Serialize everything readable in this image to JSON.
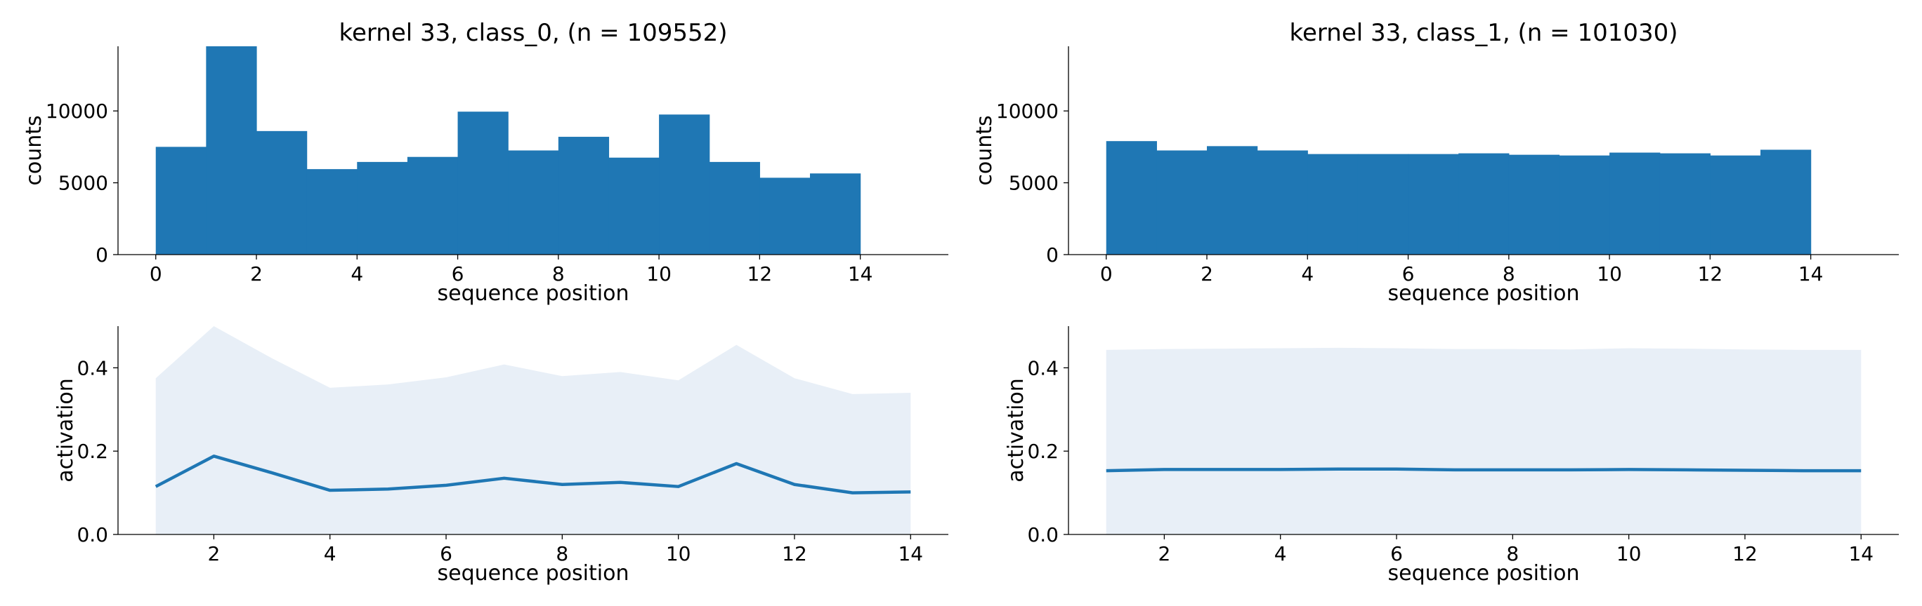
{
  "chart_data": [
    {
      "type": "bar",
      "title": "kernel 33, class_0, (n = 109552)",
      "xlabel": "sequence position",
      "ylabel": "counts",
      "xlim": [
        -0.75,
        15.75
      ],
      "ylim": [
        0,
        14500
      ],
      "xticks": [
        0,
        2,
        4,
        6,
        8,
        10,
        12,
        14
      ],
      "yticks": [
        0,
        5000,
        10000
      ],
      "bin_edges": [
        0,
        1,
        2,
        3,
        4,
        5,
        6,
        7,
        8,
        9,
        10,
        11,
        12,
        13,
        14
      ],
      "values": [
        7500,
        14600,
        8600,
        5950,
        6450,
        6800,
        9950,
        7250,
        8200,
        6750,
        9750,
        6450,
        5350,
        5650
      ],
      "color": "#1f77b4"
    },
    {
      "type": "bar",
      "title": "kernel 33, class_1, (n = 101030)",
      "xlabel": "sequence position",
      "ylabel": "counts",
      "xlim": [
        -0.75,
        15.75
      ],
      "ylim": [
        0,
        14500
      ],
      "xticks": [
        0,
        2,
        4,
        6,
        8,
        10,
        12,
        14
      ],
      "yticks": [
        0,
        5000,
        10000
      ],
      "bin_edges": [
        0,
        1,
        2,
        3,
        4,
        5,
        6,
        7,
        8,
        9,
        10,
        11,
        12,
        13,
        14
      ],
      "values": [
        7900,
        7250,
        7550,
        7250,
        7000,
        7000,
        7000,
        7050,
        6950,
        6900,
        7100,
        7050,
        6900,
        7300
      ],
      "color": "#1f77b4"
    },
    {
      "type": "line",
      "title": "",
      "xlabel": "sequence position",
      "ylabel": "activation",
      "xlim": [
        0.35,
        14.65
      ],
      "ylim": [
        0,
        0.5
      ],
      "xticks": [
        2,
        4,
        6,
        8,
        10,
        12,
        14
      ],
      "yticks": [
        0.0,
        0.2,
        0.4
      ],
      "ytick_labels": [
        "0.0",
        "0.2",
        "0.4"
      ],
      "x": [
        1,
        2,
        3,
        4,
        5,
        6,
        7,
        8,
        9,
        10,
        11,
        12,
        13,
        14
      ],
      "series": [
        {
          "name": "mean",
          "values": [
            0.115,
            0.188,
            0.148,
            0.106,
            0.109,
            0.118,
            0.135,
            0.12,
            0.125,
            0.115,
            0.17,
            0.12,
            0.1,
            0.102
          ]
        },
        {
          "name": "upper",
          "values": [
            0.375,
            0.5,
            0.423,
            0.352,
            0.36,
            0.377,
            0.408,
            0.38,
            0.39,
            0.37,
            0.455,
            0.375,
            0.337,
            0.34
          ]
        },
        {
          "name": "lower",
          "values": [
            0,
            0,
            0,
            0,
            0,
            0,
            0,
            0,
            0,
            0,
            0,
            0,
            0,
            0
          ]
        }
      ],
      "line_color": "#1f77b4",
      "fill_color": "#e8eff7"
    },
    {
      "type": "line",
      "title": "",
      "xlabel": "sequence position",
      "ylabel": "activation",
      "xlim": [
        0.35,
        14.65
      ],
      "ylim": [
        0,
        0.5
      ],
      "xticks": [
        2,
        4,
        6,
        8,
        10,
        12,
        14
      ],
      "yticks": [
        0.0,
        0.2,
        0.4
      ],
      "ytick_labels": [
        "0.0",
        "0.2",
        "0.4"
      ],
      "x": [
        1,
        2,
        3,
        4,
        5,
        6,
        7,
        8,
        9,
        10,
        11,
        12,
        13,
        14
      ],
      "series": [
        {
          "name": "mean",
          "values": [
            0.153,
            0.156,
            0.156,
            0.156,
            0.157,
            0.157,
            0.155,
            0.155,
            0.155,
            0.156,
            0.155,
            0.154,
            0.153,
            0.153
          ]
        },
        {
          "name": "upper",
          "values": [
            0.443,
            0.445,
            0.446,
            0.447,
            0.448,
            0.447,
            0.445,
            0.445,
            0.444,
            0.447,
            0.446,
            0.444,
            0.443,
            0.443
          ]
        },
        {
          "name": "lower",
          "values": [
            0,
            0,
            0,
            0,
            0,
            0,
            0,
            0,
            0,
            0,
            0,
            0,
            0,
            0
          ]
        }
      ],
      "line_color": "#1f77b4",
      "fill_color": "#e8eff7"
    }
  ]
}
